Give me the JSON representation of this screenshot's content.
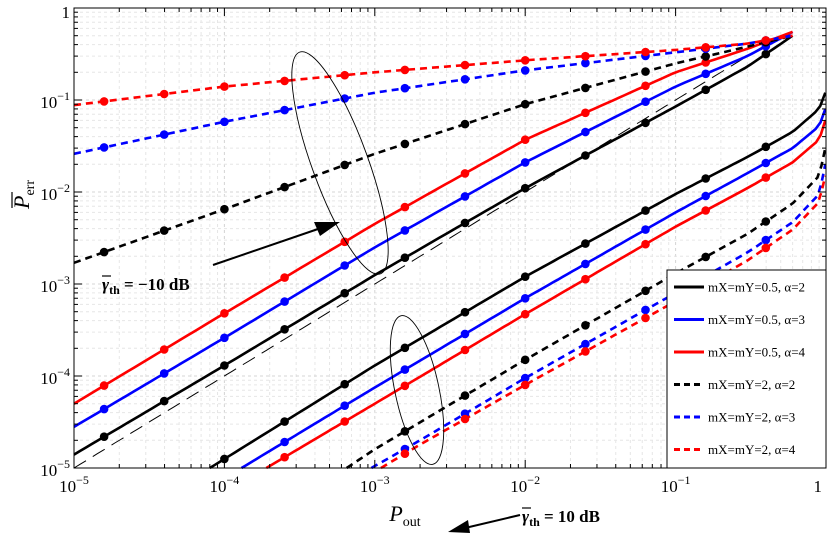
{
  "chart_data": {
    "type": "line",
    "xlabel_main": "P",
    "xlabel_sub": "out",
    "ylabel_main": "P",
    "ylabel_sub": "err",
    "x_scale": "log",
    "y_scale": "log",
    "xlim": [
      1e-05,
      1
    ],
    "ylim": [
      1e-05,
      1
    ],
    "x_ticks": [
      {
        "value": 1e-05,
        "base": "10",
        "exp": "−5"
      },
      {
        "value": 0.0001,
        "base": "10",
        "exp": "−4"
      },
      {
        "value": 0.001,
        "base": "10",
        "exp": "−3"
      },
      {
        "value": 0.01,
        "base": "10",
        "exp": "−2"
      },
      {
        "value": 0.1,
        "base": "10",
        "exp": "−1"
      },
      {
        "value": 1,
        "base": "1",
        "exp": ""
      }
    ],
    "y_ticks": [
      {
        "value": 1e-05,
        "base": "10",
        "exp": "−5"
      },
      {
        "value": 0.0001,
        "base": "10",
        "exp": "−4"
      },
      {
        "value": 0.001,
        "base": "10",
        "exp": "−3"
      },
      {
        "value": 0.01,
        "base": "10",
        "exp": "−2"
      },
      {
        "value": 0.1,
        "base": "10",
        "exp": "−1"
      },
      {
        "value": 1,
        "base": "1",
        "exp": ""
      }
    ],
    "grid": true,
    "legend_position": "lower-right",
    "series": [
      {
        "name": "mX=mY=0.5, α=2",
        "legend_label": "m_X=m_Y=0.5, α=2",
        "group": "γth = −10 dB",
        "color": "#000000",
        "dash": "solid",
        "x": [
          1e-05,
          0.0001,
          0.001,
          0.01,
          0.1,
          0.3,
          0.6
        ],
        "y": [
          1.4e-05,
          0.00013,
          0.00125,
          0.011,
          0.085,
          0.23,
          0.5
        ]
      },
      {
        "name": "mX=mY=0.5, α=3",
        "legend_label": "m_X=m_Y=0.5, α=3",
        "group": "γth = −10 dB",
        "color": "#0000ff",
        "dash": "solid",
        "x": [
          1e-05,
          0.0001,
          0.001,
          0.01,
          0.1,
          0.3,
          0.6
        ],
        "y": [
          2.8e-05,
          0.00026,
          0.0025,
          0.021,
          0.14,
          0.3,
          0.55
        ]
      },
      {
        "name": "mX=mY=0.5, α=4",
        "legend_label": "m_X=m_Y=0.5, α=4",
        "group": "γth = −10 dB",
        "color": "#ff0000",
        "dash": "solid",
        "x": [
          1e-05,
          0.0001,
          0.001,
          0.01,
          0.1,
          0.3,
          0.6
        ],
        "y": [
          5e-05,
          0.00048,
          0.0045,
          0.037,
          0.2,
          0.36,
          0.55
        ]
      },
      {
        "name": "mX=mY=2, α=2",
        "legend_label": "m_X=m_Y=2, α=2",
        "group": "γth = −10 dB",
        "color": "#000000",
        "dash": "dashed",
        "x": [
          1e-05,
          0.0001,
          0.001,
          0.01,
          0.1,
          0.3,
          0.6
        ],
        "y": [
          0.0017,
          0.0065,
          0.026,
          0.09,
          0.25,
          0.38,
          0.5
        ]
      },
      {
        "name": "mX=mY=2, α=3",
        "legend_label": "m_X=m_Y=2, α=3",
        "group": "γth = −10 dB",
        "color": "#0000ff",
        "dash": "dashed",
        "x": [
          1e-05,
          0.0001,
          0.001,
          0.01,
          0.1,
          0.3,
          0.6
        ],
        "y": [
          0.026,
          0.058,
          0.12,
          0.21,
          0.33,
          0.41,
          0.5
        ]
      },
      {
        "name": "mX=mY=2, α=4",
        "legend_label": "m_X=m_Y=2, α=4",
        "group": "γth = −10 dB",
        "color": "#ff0000",
        "dash": "dashed",
        "x": [
          1e-05,
          0.0001,
          0.001,
          0.01,
          0.1,
          0.3,
          0.6
        ],
        "y": [
          0.088,
          0.14,
          0.2,
          0.27,
          0.35,
          0.41,
          0.5
        ]
      },
      {
        "name": "mX=mY=0.5, α=2 (10 dB)",
        "legend_label": "m_X=m_Y=0.5, α=2",
        "group": "γth = 10 dB",
        "color": "#000000",
        "dash": "solid",
        "x": [
          8e-05,
          0.001,
          0.01,
          0.1,
          0.3,
          0.6,
          0.9,
          0.99
        ],
        "y": [
          1e-05,
          0.00013,
          0.0012,
          0.0095,
          0.024,
          0.045,
          0.08,
          0.12
        ]
      },
      {
        "name": "mX=mY=0.5, α=3 (10 dB)",
        "legend_label": "m_X=m_Y=0.5, α=3",
        "group": "γth = 10 dB",
        "color": "#0000ff",
        "dash": "solid",
        "x": [
          0.00013,
          0.001,
          0.01,
          0.1,
          0.3,
          0.6,
          0.9,
          0.99
        ],
        "y": [
          1e-05,
          7.5e-05,
          0.0007,
          0.006,
          0.016,
          0.03,
          0.052,
          0.08
        ]
      },
      {
        "name": "mX=mY=0.5, α=4 (10 dB)",
        "legend_label": "m_X=m_Y=0.5, α=4",
        "group": "γth = 10 dB",
        "color": "#ff0000",
        "dash": "solid",
        "x": [
          0.00019,
          0.001,
          0.01,
          0.1,
          0.3,
          0.6,
          0.9,
          0.99
        ],
        "y": [
          1e-05,
          5e-05,
          0.00047,
          0.0042,
          0.011,
          0.021,
          0.037,
          0.06
        ]
      },
      {
        "name": "mX=mY=2, α=2 (10 dB)",
        "legend_label": "m_X=m_Y=2, α=2",
        "group": "γth = 10 dB",
        "color": "#000000",
        "dash": "dashed",
        "x": [
          0.00065,
          0.001,
          0.01,
          0.1,
          0.3,
          0.6,
          0.9,
          0.99
        ],
        "y": [
          1e-05,
          1.6e-05,
          0.00015,
          0.0013,
          0.0035,
          0.0075,
          0.015,
          0.03
        ]
      },
      {
        "name": "mX=mY=2, α=3 (10 dB)",
        "legend_label": "m_X=m_Y=2, α=3",
        "group": "γth = 10 dB",
        "color": "#0000ff",
        "dash": "dashed",
        "x": [
          0.00095,
          0.002,
          0.01,
          0.1,
          0.3,
          0.6,
          0.9,
          0.99
        ],
        "y": [
          1e-05,
          2e-05,
          9.5e-05,
          0.0008,
          0.0022,
          0.0047,
          0.0095,
          0.02
        ]
      },
      {
        "name": "mX=mY=2, α=4 (10 dB)",
        "legend_label": "m_X=m_Y=2, α=4",
        "group": "γth = 10 dB",
        "color": "#ff0000",
        "dash": "dashed",
        "x": [
          0.0011,
          0.002,
          0.01,
          0.1,
          0.3,
          0.6,
          0.9,
          0.99
        ],
        "y": [
          1e-05,
          1.8e-05,
          8e-05,
          0.00065,
          0.0018,
          0.0039,
          0.0078,
          0.015
        ]
      }
    ],
    "asymptotes": [
      {
        "x": [
          1e-05,
          0.45
        ],
        "y": [
          1e-05,
          0.45
        ],
        "color": "#000000",
        "dash": "long-dash"
      }
    ],
    "annotations": [
      {
        "text_main": "γ",
        "text_sub": "th",
        "text_rest": " = −10 dB"
      },
      {
        "text_main": "γ",
        "text_sub": "th",
        "text_rest": " = 10 dB"
      }
    ]
  }
}
